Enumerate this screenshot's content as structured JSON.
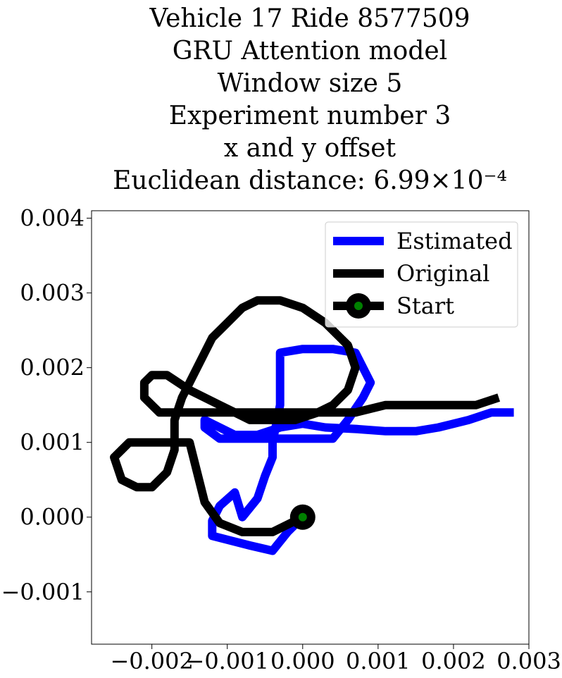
{
  "title_lines": [
    "Vehicle 17 Ride 8577509",
    "GRU Attention model",
    "Window size 5",
    "Experiment number 3",
    "x and y offset",
    "Euclidean distance: 6.99×10⁻⁴"
  ],
  "chart_data": {
    "type": "line",
    "title": "Vehicle 17 Ride 8577509 GRU Attention model Window size 5 Experiment number 3 x and y offset Euclidean distance: 6.99×10⁻⁴",
    "xlim": [
      -0.0028,
      0.003
    ],
    "ylim": [
      -0.0017,
      0.0041
    ],
    "x_ticks": [
      -0.002,
      -0.001,
      0.0,
      0.001,
      0.002,
      0.003
    ],
    "x_tick_labels": [
      "−0.002",
      "−0.001",
      "0.000",
      "0.001",
      "0.002",
      "0.003"
    ],
    "y_ticks": [
      -0.001,
      0.0,
      0.001,
      0.002,
      0.003,
      0.004
    ],
    "y_tick_labels": [
      "−0.001",
      "0.000",
      "0.001",
      "0.002",
      "0.003",
      "0.004"
    ],
    "grid": false,
    "legend_position": "top-right",
    "series": [
      {
        "name": "Estimated",
        "color": "#0000ff",
        "x": [
          0.0,
          -0.0002,
          -0.0004,
          -0.0007,
          -0.0012,
          -0.0012,
          -0.0011,
          -0.0009,
          -0.0008,
          -0.0006,
          -0.0005,
          -0.0004,
          -0.0004,
          -0.0003,
          -0.0003,
          0.0,
          0.0004,
          0.0007,
          0.0009,
          0.0008,
          0.0006,
          0.0004,
          0.0002,
          -0.0001,
          -0.0004,
          -0.0007,
          -0.0011,
          -0.0013,
          -0.0013,
          -0.0012,
          -0.0009,
          -0.0006,
          -0.0003,
          0.0,
          0.0003,
          0.0007,
          0.0011,
          0.0015,
          0.0018,
          0.0022,
          0.0025,
          0.0028
        ],
        "y": [
          0.0,
          -0.0002,
          -0.00045,
          -0.00038,
          -0.00025,
          -5e-05,
          0.00015,
          0.00033,
          0.0,
          0.00025,
          0.00055,
          0.0008,
          0.001,
          0.0015,
          0.0022,
          0.00225,
          0.00225,
          0.0022,
          0.0018,
          0.0016,
          0.0013,
          0.00105,
          0.00105,
          0.00105,
          0.00105,
          0.00105,
          0.00105,
          0.0012,
          0.0013,
          0.00125,
          0.0011,
          0.0011,
          0.0012,
          0.00125,
          0.0012,
          0.00118,
          0.00115,
          0.00115,
          0.0012,
          0.0013,
          0.0014,
          0.0014
        ]
      },
      {
        "name": "Original",
        "color": "#000000",
        "x": [
          0.0,
          -0.0004,
          -0.0008,
          -0.0011,
          -0.0013,
          -0.0014,
          -0.0015,
          -0.0016,
          -0.0017,
          -0.0018,
          -0.0019,
          -0.0021,
          -0.0023,
          -0.0024,
          -0.0025,
          -0.0024,
          -0.0022,
          -0.002,
          -0.0018,
          -0.0017,
          -0.0017,
          -0.0016,
          -0.0014,
          -0.0012,
          -0.001,
          -0.0008,
          -0.0006,
          -0.0003,
          0.0,
          0.0003,
          0.0006,
          0.0007,
          0.0006,
          0.0004,
          0.0002,
          -0.0001,
          -0.0004,
          -0.0007,
          -0.0009,
          -0.0011,
          -0.0013,
          -0.0015,
          -0.0018,
          -0.002,
          -0.0021,
          -0.0021,
          -0.0019,
          -0.0017,
          -0.0015,
          -0.0012,
          -0.0009,
          -0.0006,
          -0.0003,
          0.0,
          0.0003,
          0.0007,
          0.0011,
          0.0015,
          0.0019,
          0.0023,
          0.0026
        ],
        "y": [
          0.0,
          -0.0002,
          -0.0002,
          -8e-05,
          0.0002,
          0.0006,
          0.001,
          0.001,
          0.001,
          0.001,
          0.001,
          0.001,
          0.001,
          0.0009,
          0.0008,
          0.0005,
          0.0004,
          0.0004,
          0.0006,
          0.0009,
          0.0013,
          0.0016,
          0.002,
          0.0024,
          0.0026,
          0.0028,
          0.0029,
          0.0029,
          0.0028,
          0.0026,
          0.0023,
          0.002,
          0.0017,
          0.0015,
          0.0014,
          0.0013,
          0.0013,
          0.0013,
          0.0014,
          0.0015,
          0.0016,
          0.0017,
          0.0019,
          0.0019,
          0.0018,
          0.0016,
          0.0014,
          0.0014,
          0.0014,
          0.0014,
          0.0014,
          0.0014,
          0.0014,
          0.0014,
          0.0014,
          0.0014,
          0.0015,
          0.0015,
          0.0015,
          0.0015,
          0.0016
        ]
      }
    ],
    "start_marker": {
      "name": "Start",
      "x": 0.0,
      "y": 0.0,
      "outer_color": "#000000",
      "inner_color": "#008000"
    }
  }
}
